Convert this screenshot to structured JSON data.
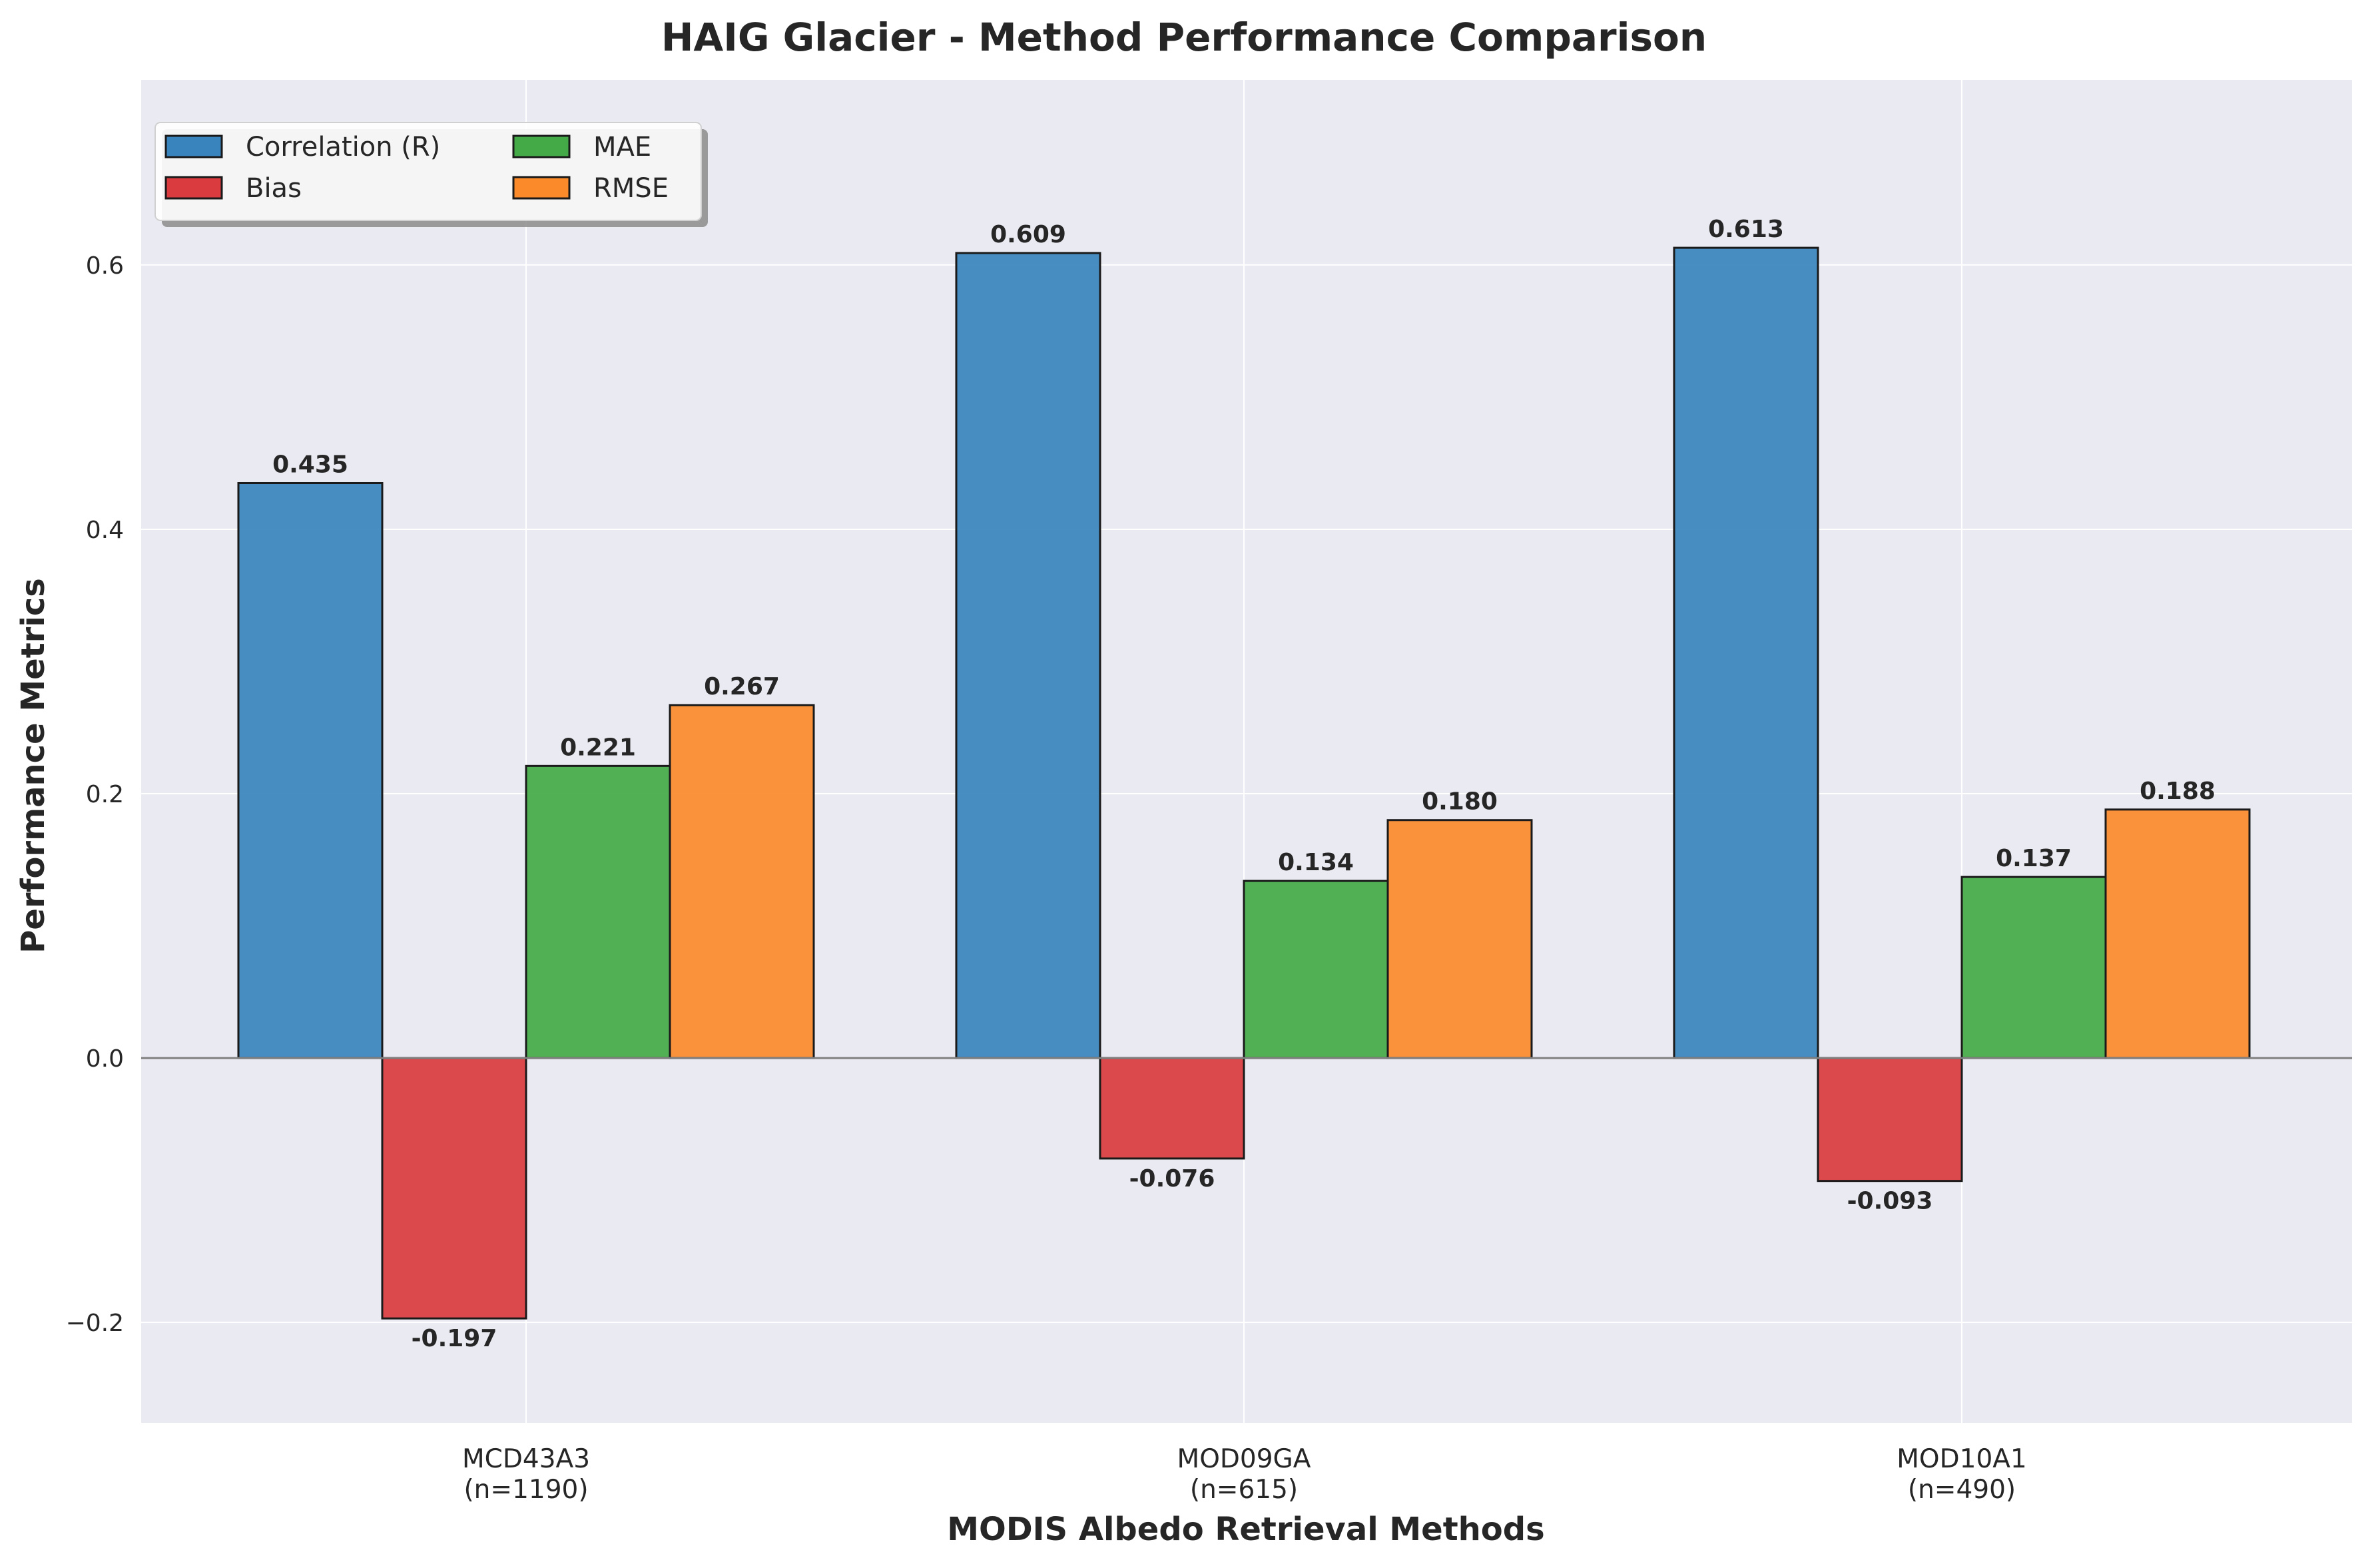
{
  "chart_data": {
    "type": "bar",
    "title": "HAIG Glacier - Method Performance Comparison",
    "xlabel": "MODIS Albedo Retrieval Methods",
    "ylabel": "Performance Metrics",
    "categories": [
      "MCD43A3",
      "MOD09GA",
      "MOD10A1"
    ],
    "category_sublabels": [
      "(n=1190)",
      "(n=615)",
      "(n=490)"
    ],
    "series": [
      {
        "name": "Correlation (R)",
        "color": "#3a84be",
        "values": [
          0.435,
          0.609,
          0.613
        ],
        "labels": [
          "0.435",
          "0.609",
          "0.613"
        ]
      },
      {
        "name": "Bias",
        "color": "#d93b3e",
        "values": [
          -0.197,
          -0.076,
          -0.093
        ],
        "labels": [
          "-0.197",
          "-0.076",
          "-0.093"
        ]
      },
      {
        "name": "MAE",
        "color": "#43aa47",
        "values": [
          0.221,
          0.134,
          0.137
        ],
        "labels": [
          "0.221",
          "0.134",
          "0.137"
        ]
      },
      {
        "name": "RMSE",
        "color": "#fb8a2b",
        "values": [
          0.267,
          0.18,
          0.188
        ],
        "labels": [
          "0.267",
          "0.180",
          "0.188"
        ]
      }
    ],
    "ylim": [
      -0.276,
      0.74
    ],
    "yticks": [
      -0.2,
      0.0,
      0.2,
      0.4,
      0.6
    ],
    "ytick_labels": [
      "−0.2",
      "0.0",
      "0.2",
      "0.4",
      "0.6"
    ],
    "grid": true,
    "zero_line": true,
    "legend_position": "top-left",
    "colors": {
      "plot_background": "#eaeaf2",
      "grid": "#ffffff",
      "bar_edge": "#1a1a1a",
      "zero_line": "#808080"
    }
  }
}
